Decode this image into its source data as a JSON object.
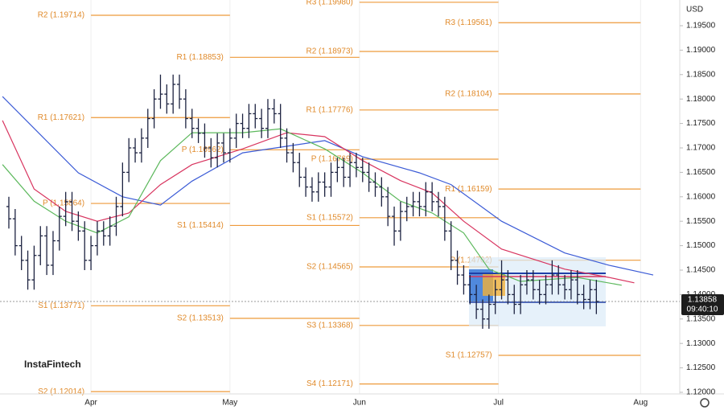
{
  "chart_data": {
    "type": "ohlc",
    "currency": "USD",
    "watermark": "InstaFintech",
    "x": [
      -13,
      -12,
      -11,
      -10,
      -9,
      -8,
      -7,
      -6,
      -5,
      -4,
      -3,
      -2,
      -1,
      0,
      1,
      2,
      3,
      4,
      5,
      6,
      7,
      8,
      9,
      10,
      11,
      12,
      13,
      14,
      15,
      16,
      17,
      18,
      19,
      20,
      21,
      22,
      23,
      24,
      25,
      26,
      27,
      28,
      29,
      30,
      31,
      32,
      33,
      34,
      35,
      36,
      37,
      38,
      39,
      40,
      41,
      42,
      43,
      44,
      45,
      46,
      47,
      48,
      49,
      50,
      51,
      52,
      53,
      54,
      55,
      56,
      57,
      58,
      59,
      60,
      61,
      62,
      63,
      64,
      65,
      66,
      67,
      68,
      69,
      70,
      71,
      72,
      73,
      74,
      75,
      76,
      77,
      78,
      79,
      80
    ],
    "open": [
      1.158,
      1.1555,
      1.15,
      1.147,
      1.143,
      1.148,
      1.152,
      1.146,
      1.151,
      1.156,
      1.159,
      1.155,
      1.153,
      1.147,
      1.15,
      1.153,
      1.152,
      1.154,
      1.158,
      1.165,
      1.17,
      1.169,
      1.172,
      1.176,
      1.18,
      1.181,
      1.179,
      1.183,
      1.18,
      1.176,
      1.174,
      1.173,
      1.17,
      1.168,
      1.171,
      1.169,
      1.172,
      1.175,
      1.174,
      1.177,
      1.176,
      1.174,
      1.178,
      1.177,
      1.172,
      1.169,
      1.167,
      1.164,
      1.162,
      1.161,
      1.163,
      1.162,
      1.165,
      1.166,
      1.164,
      1.167,
      1.166,
      1.165,
      1.163,
      1.162,
      1.16,
      1.156,
      1.153,
      1.157,
      1.158,
      1.159,
      1.158,
      1.161,
      1.159,
      1.158,
      1.153,
      1.147,
      1.144,
      1.142,
      1.14,
      1.137,
      1.135,
      1.138,
      1.141,
      1.143,
      1.14,
      1.138,
      1.142,
      1.143,
      1.141,
      1.14,
      1.142,
      1.144,
      1.142,
      1.141,
      1.143,
      1.14,
      1.139,
      1.141
    ],
    "high": [
      1.16,
      1.1575,
      1.152,
      1.149,
      1.15,
      1.154,
      1.154,
      1.153,
      1.158,
      1.161,
      1.161,
      1.157,
      1.155,
      1.152,
      1.155,
      1.155,
      1.156,
      1.16,
      1.167,
      1.172,
      1.172,
      1.174,
      1.178,
      1.182,
      1.185,
      1.183,
      1.185,
      1.185,
      1.182,
      1.178,
      1.176,
      1.175,
      1.172,
      1.173,
      1.173,
      1.174,
      1.177,
      1.177,
      1.179,
      1.179,
      1.178,
      1.18,
      1.18,
      1.179,
      1.174,
      1.171,
      1.169,
      1.166,
      1.164,
      1.165,
      1.165,
      1.167,
      1.168,
      1.168,
      1.169,
      1.169,
      1.168,
      1.167,
      1.165,
      1.164,
      1.162,
      1.158,
      1.159,
      1.16,
      1.161,
      1.161,
      1.163,
      1.163,
      1.161,
      1.16,
      1.155,
      1.149,
      1.146,
      1.144,
      1.142,
      1.139,
      1.14,
      1.143,
      1.147,
      1.145,
      1.142,
      1.144,
      1.145,
      1.145,
      1.143,
      1.144,
      1.147,
      1.146,
      1.144,
      1.145,
      1.145,
      1.142,
      1.143,
      1.143
    ],
    "low": [
      1.1535,
      1.148,
      1.145,
      1.141,
      1.141,
      1.146,
      1.144,
      1.144,
      1.149,
      1.154,
      1.153,
      1.151,
      1.145,
      1.145,
      1.148,
      1.15,
      1.15,
      1.152,
      1.156,
      1.163,
      1.167,
      1.167,
      1.17,
      1.174,
      1.178,
      1.177,
      1.177,
      1.178,
      1.174,
      1.172,
      1.171,
      1.168,
      1.166,
      1.166,
      1.167,
      1.167,
      1.17,
      1.172,
      1.172,
      1.174,
      1.172,
      1.172,
      1.175,
      1.17,
      1.167,
      1.165,
      1.162,
      1.16,
      1.159,
      1.159,
      1.16,
      1.16,
      1.163,
      1.162,
      1.162,
      1.164,
      1.163,
      1.161,
      1.16,
      1.158,
      1.154,
      1.15,
      1.151,
      1.155,
      1.156,
      1.156,
      1.156,
      1.157,
      1.156,
      1.151,
      1.145,
      1.142,
      1.14,
      1.138,
      1.135,
      1.133,
      1.133,
      1.136,
      1.139,
      1.138,
      1.136,
      1.136,
      1.14,
      1.139,
      1.138,
      1.138,
      1.14,
      1.14,
      1.139,
      1.139,
      1.138,
      1.137,
      1.137,
      1.136
    ],
    "close": [
      1.1555,
      1.15,
      1.147,
      1.143,
      1.148,
      1.152,
      1.146,
      1.151,
      1.156,
      1.159,
      1.155,
      1.153,
      1.147,
      1.15,
      1.153,
      1.152,
      1.154,
      1.158,
      1.165,
      1.17,
      1.169,
      1.172,
      1.176,
      1.18,
      1.181,
      1.179,
      1.183,
      1.18,
      1.176,
      1.174,
      1.173,
      1.17,
      1.168,
      1.171,
      1.169,
      1.172,
      1.175,
      1.174,
      1.177,
      1.176,
      1.174,
      1.178,
      1.177,
      1.172,
      1.169,
      1.167,
      1.164,
      1.162,
      1.161,
      1.163,
      1.162,
      1.165,
      1.166,
      1.164,
      1.167,
      1.166,
      1.165,
      1.163,
      1.162,
      1.16,
      1.156,
      1.153,
      1.157,
      1.158,
      1.159,
      1.158,
      1.161,
      1.159,
      1.158,
      1.153,
      1.147,
      1.144,
      1.142,
      1.14,
      1.137,
      1.135,
      1.138,
      1.141,
      1.143,
      1.14,
      1.138,
      1.142,
      1.143,
      1.141,
      1.14,
      1.142,
      1.144,
      1.142,
      1.141,
      1.143,
      1.14,
      1.139,
      1.141,
      1.13858
    ],
    "bar_color": "#1c2240",
    "series": [
      {
        "color": "#3b5bd6",
        "x": [
          -14,
          -2,
          5,
          11,
          16,
          24,
          37,
          43,
          52,
          57,
          65,
          75,
          82,
          89
        ],
        "values": [
          1.1805,
          1.1649,
          1.16,
          1.1583,
          1.1632,
          1.169,
          1.1715,
          1.1682,
          1.1649,
          1.1625,
          1.155,
          1.1485,
          1.146,
          1.144
        ]
      },
      {
        "color": "#d8345f",
        "x": [
          -14,
          -9,
          -4,
          1,
          6,
          11,
          16,
          24,
          31,
          37,
          43,
          49,
          54,
          59,
          65,
          75,
          82,
          86
        ],
        "values": [
          1.1756,
          1.1616,
          1.157,
          1.155,
          1.1567,
          1.1625,
          1.1666,
          1.1698,
          1.1731,
          1.1723,
          1.1674,
          1.1633,
          1.1608,
          1.155,
          1.1493,
          1.1452,
          1.1435,
          1.1424
        ]
      },
      {
        "color": "#5cb85c",
        "x": [
          -14,
          -9,
          -4,
          1,
          6,
          11,
          16,
          24,
          30,
          37,
          43,
          49,
          54,
          59,
          63,
          68,
          77,
          84
        ],
        "values": [
          1.1666,
          1.1591,
          1.155,
          1.1526,
          1.1559,
          1.1674,
          1.1731,
          1.1731,
          1.1739,
          1.1698,
          1.1649,
          1.1591,
          1.1567,
          1.1526,
          1.1452,
          1.1427,
          1.1435,
          1.1419
        ]
      }
    ],
    "pivot_color": "#ee9a3a",
    "pivots": [
      {
        "levels": [
          {
            "label": "R2 (1.19714)",
            "value": 1.19714
          },
          {
            "label": "R1 (1.17621)",
            "value": 1.17621
          },
          {
            "label": "P (1.15864)",
            "value": 1.15864
          },
          {
            "label": "S1 (1.13771)",
            "value": 1.13771
          },
          {
            "label": "S2 (1.12014)",
            "value": 1.12014
          }
        ]
      },
      {
        "levels": [
          {
            "label": "R1 (1.18853)",
            "value": 1.18853
          },
          {
            "label": "P (1.16962)",
            "value": 1.16962
          },
          {
            "label": "S1 (1.15414)",
            "value": 1.15414
          },
          {
            "label": "S2 (1.13513)",
            "value": 1.13513
          }
        ]
      },
      {
        "levels": [
          {
            "label": "R3 (1.19980)",
            "value": 1.1998
          },
          {
            "label": "R2 (1.18973)",
            "value": 1.18973
          },
          {
            "label": "R1 (1.17776)",
            "value": 1.17776
          },
          {
            "label": "P (1.16769)",
            "value": 1.16769
          },
          {
            "label": "S1 (1.15572)",
            "value": 1.15572
          },
          {
            "label": "S2 (1.14565)",
            "value": 1.14565
          },
          {
            "label": "S3 (1.13368)",
            "value": 1.13368
          },
          {
            "label": "S4 (1.12171)",
            "value": 1.12171
          }
        ]
      },
      {
        "levels": [
          {
            "label": "R3 (1.19561)",
            "value": 1.19561
          },
          {
            "label": "R2 (1.18104)",
            "value": 1.18104
          },
          {
            "label": "R1 (1.16159)",
            "value": 1.16159
          },
          {
            "label": "P (1.14702)",
            "value": 1.14702
          },
          {
            "label": "S1 (1.12757)",
            "value": 1.12757
          }
        ]
      }
    ],
    "last_price": {
      "value": 1.13858,
      "label": "1.13858"
    },
    "last_time": "09:40:10",
    "xlim": [
      -14.4,
      93.2
    ],
    "xticks": [
      {
        "value": 0,
        "label": "Apr"
      },
      {
        "value": 22,
        "label": "May"
      },
      {
        "value": 42.5,
        "label": "Jun"
      },
      {
        "value": 64.5,
        "label": "Jul"
      },
      {
        "value": 87,
        "label": "Aug"
      }
    ],
    "ylim": [
      1.11967,
      1.20026
    ],
    "yticks": [
      {
        "value": 1.12,
        "label": "1.12000"
      },
      {
        "value": 1.125,
        "label": "1.12500"
      },
      {
        "value": 1.13,
        "label": "1.13000"
      },
      {
        "value": 1.135,
        "label": "1.13500"
      },
      {
        "value": 1.14,
        "label": "1.14000"
      },
      {
        "value": 1.145,
        "label": "1.14500"
      },
      {
        "value": 1.15,
        "label": "1.15000"
      },
      {
        "value": 1.155,
        "label": "1.15500"
      },
      {
        "value": 1.16,
        "label": "1.16000"
      },
      {
        "value": 1.165,
        "label": "1.16500"
      },
      {
        "value": 1.17,
        "label": "1.17000"
      },
      {
        "value": 1.175,
        "label": "1.17500"
      },
      {
        "value": 1.18,
        "label": "1.18000"
      },
      {
        "value": 1.185,
        "label": "1.18500"
      },
      {
        "value": 1.19,
        "label": "1.19000"
      },
      {
        "value": 1.195,
        "label": "1.19500"
      }
    ]
  }
}
